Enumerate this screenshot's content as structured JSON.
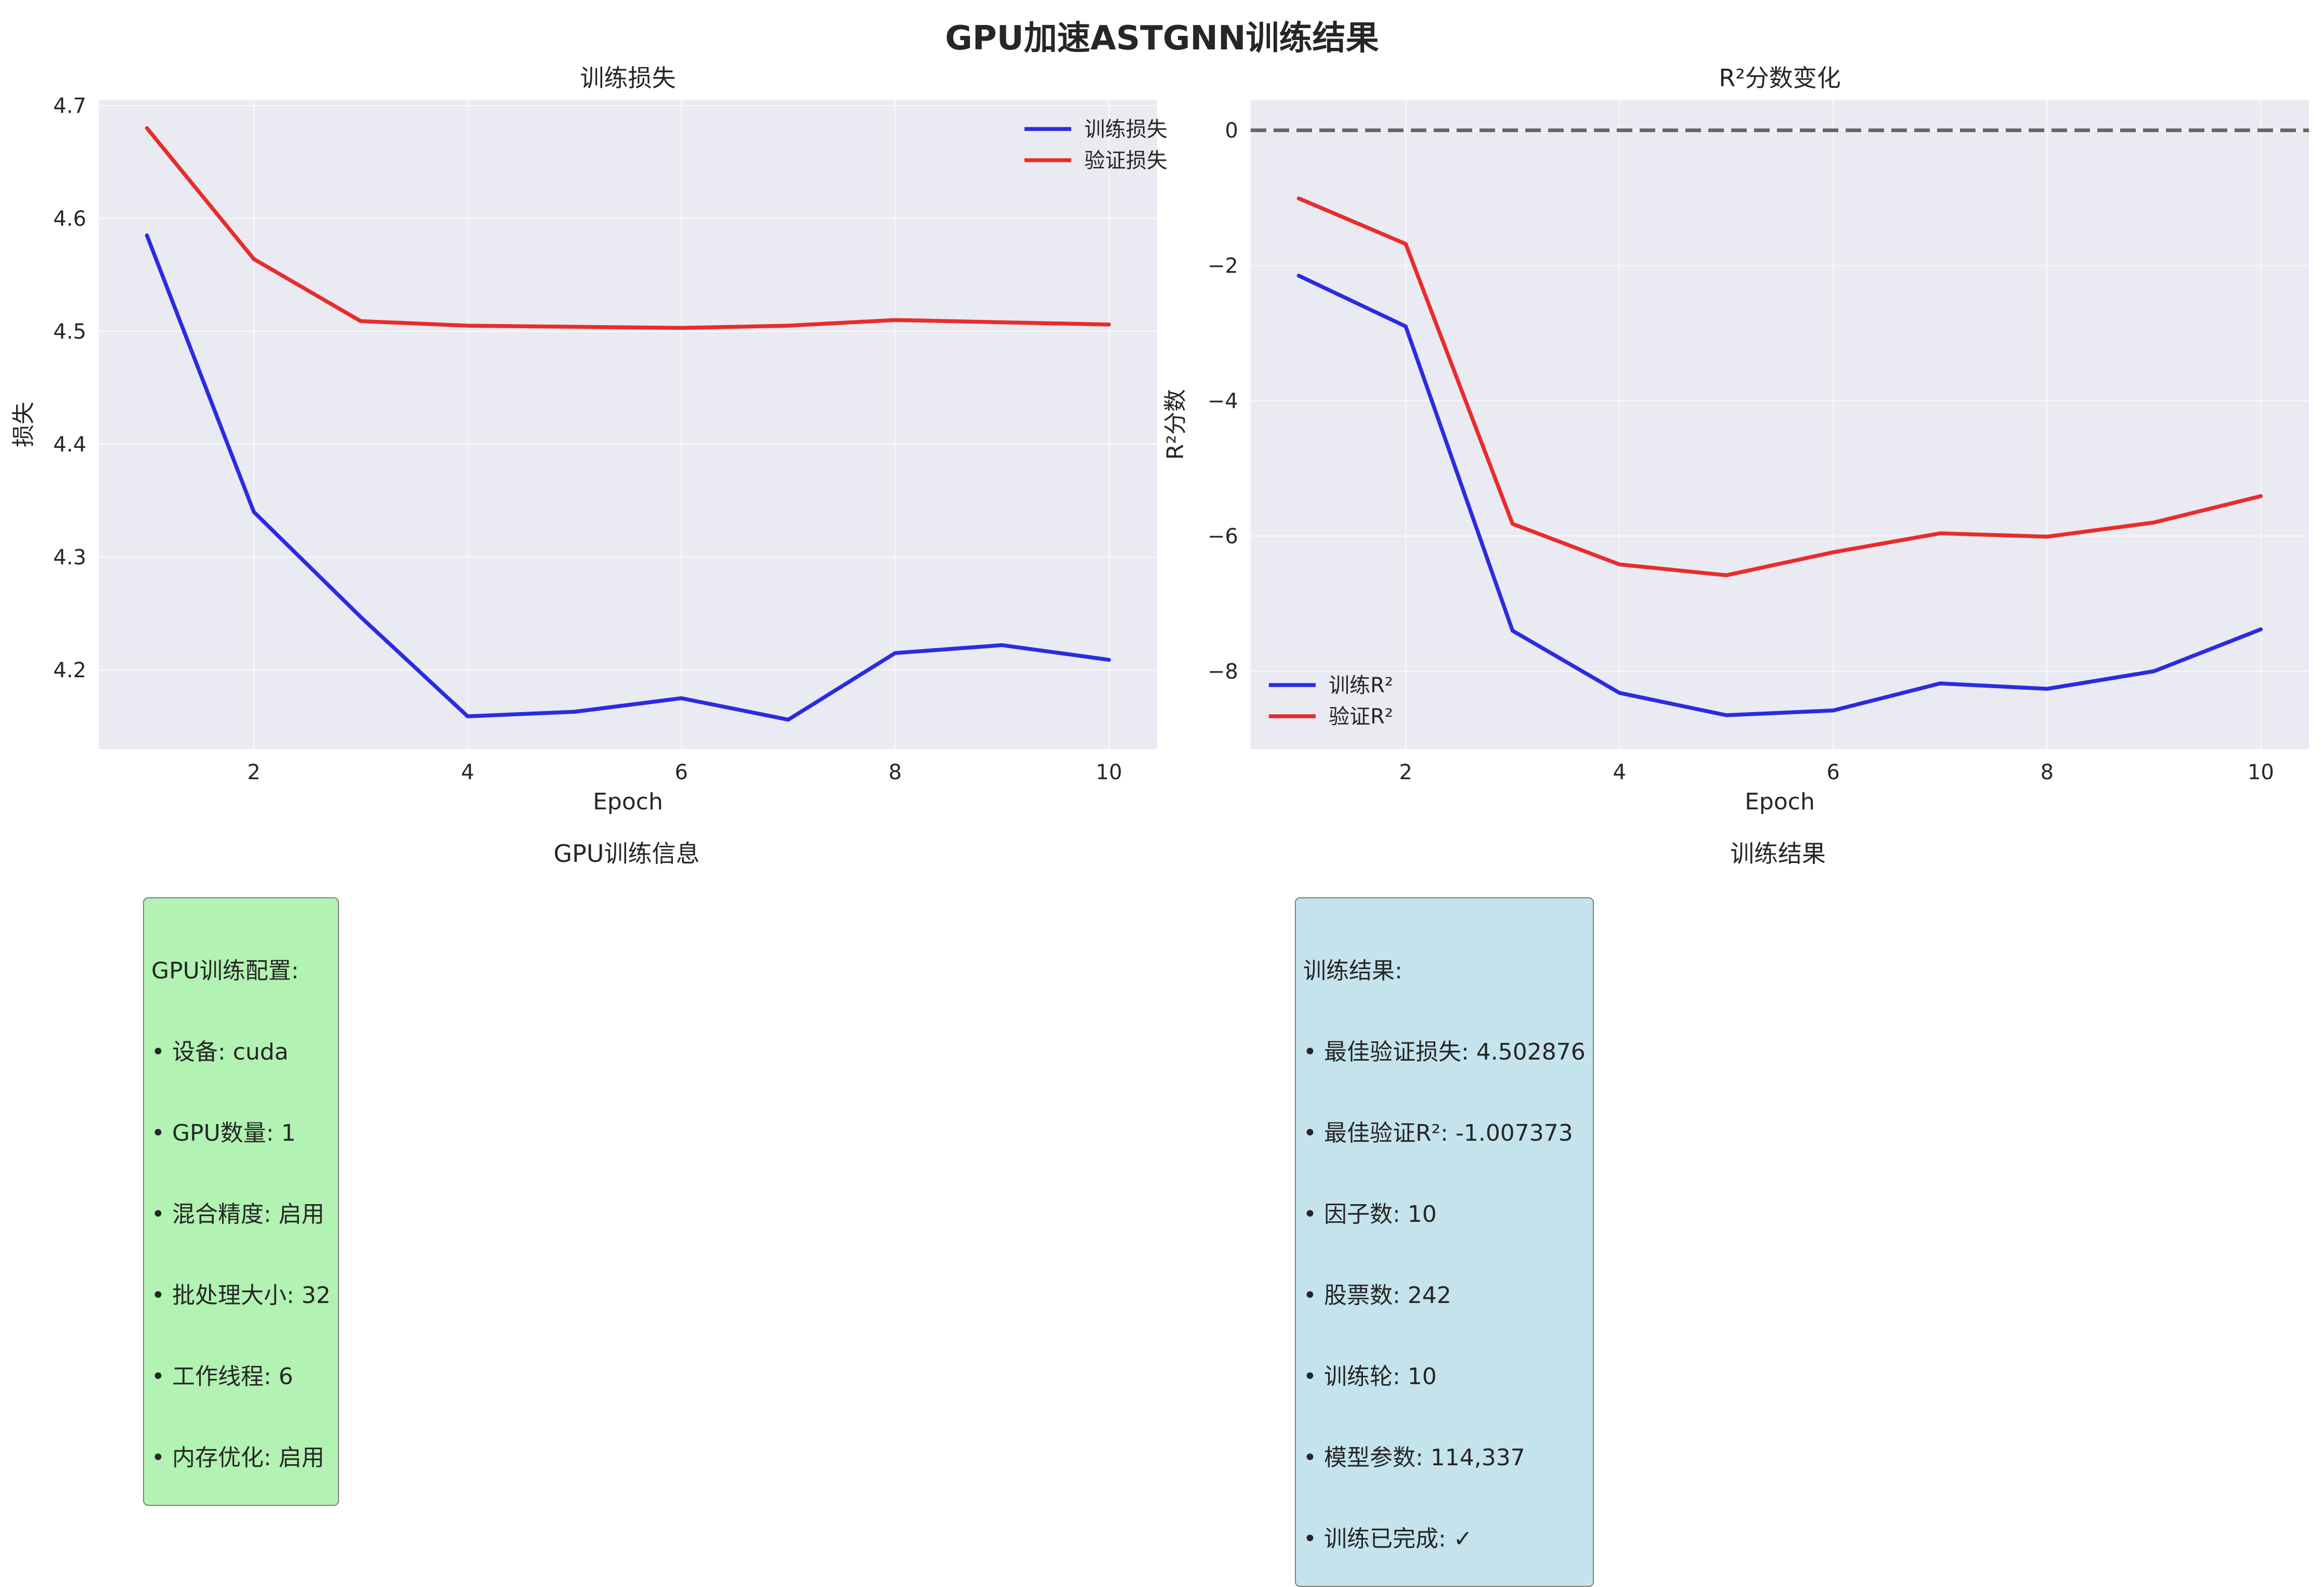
{
  "suptitle": "GPU加速ASTGNN训练结果",
  "chart_data": [
    {
      "type": "line",
      "title": "训练损失",
      "xlabel": "Epoch",
      "ylabel": "损失",
      "x": [
        1,
        2,
        3,
        4,
        5,
        6,
        7,
        8,
        9,
        10
      ],
      "xlim": [
        0.55,
        10.45
      ],
      "ylim": [
        4.13,
        4.705
      ],
      "xticks": [
        2,
        4,
        6,
        8,
        10
      ],
      "yticks": [
        4.2,
        4.3,
        4.4,
        4.5,
        4.6,
        4.7
      ],
      "ytick_labels": [
        "4.2",
        "4.3",
        "4.4",
        "4.5",
        "4.6",
        "4.7"
      ],
      "grid": true,
      "legend": "upper right",
      "series": [
        {
          "name": "训练损失",
          "color": "#2b2be0",
          "values": [
            4.585,
            4.34,
            4.247,
            4.159,
            4.163,
            4.175,
            4.156,
            4.215,
            4.222,
            4.209
          ]
        },
        {
          "name": "验证损失",
          "color": "#e82c2c",
          "values": [
            4.68,
            4.564,
            4.509,
            4.505,
            4.504,
            4.503,
            4.505,
            4.51,
            4.508,
            4.506
          ]
        }
      ]
    },
    {
      "type": "line",
      "title": "R²分数变化",
      "xlabel": "Epoch",
      "ylabel": "R²分数",
      "x": [
        1,
        2,
        3,
        4,
        5,
        6,
        7,
        8,
        9,
        10
      ],
      "xlim": [
        0.55,
        10.45
      ],
      "ylim": [
        -9.15,
        0.45
      ],
      "xticks": [
        2,
        4,
        6,
        8,
        10
      ],
      "yticks": [
        0,
        -2,
        -4,
        -6,
        -8
      ],
      "ytick_labels": [
        "0",
        "−2",
        "−4",
        "−6",
        "−8"
      ],
      "reference_line": {
        "y": 0,
        "style": "dashed",
        "color": "#666666"
      },
      "grid": true,
      "legend": "lower left",
      "series": [
        {
          "name": "训练R²",
          "color": "#2b2be0",
          "values": [
            -2.15,
            -2.9,
            -7.4,
            -8.32,
            -8.65,
            -8.58,
            -8.18,
            -8.26,
            -8.0,
            -7.38
          ]
        },
        {
          "name": "验证R²",
          "color": "#e82c2c",
          "values": [
            -1.007,
            -1.68,
            -5.82,
            -6.42,
            -6.58,
            -6.24,
            -5.96,
            -6.01,
            -5.8,
            -5.41
          ]
        }
      ]
    }
  ],
  "panels": {
    "gpu": {
      "title": "GPU训练信息",
      "lines": [
        "GPU训练配置:",
        "• 设备: cuda",
        "• GPU数量: 1",
        "• 混合精度: 启用",
        "• 批处理大小: 32",
        "• 工作线程: 6",
        "• 内存优化: 启用"
      ],
      "bg": "#b2f2b2"
    },
    "result": {
      "title": "训练结果",
      "lines": [
        "训练结果:",
        "• 最佳验证损失: 4.502876",
        "• 最佳验证R²: -1.007373",
        "• 因子数: 10",
        "• 股票数: 242",
        "• 训练轮: 10",
        "• 模型参数: 114,337",
        "• 训练已完成: ✓"
      ],
      "bg": "#c5e3ec"
    }
  }
}
